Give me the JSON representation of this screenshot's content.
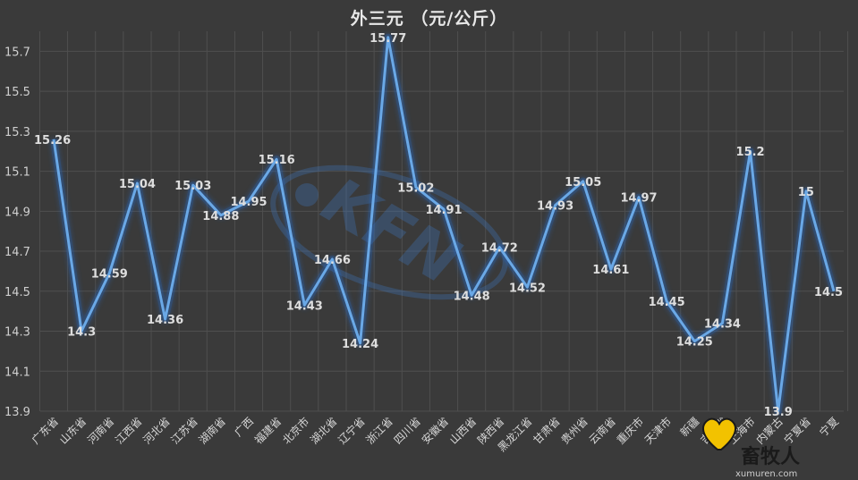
{
  "chart_data": {
    "type": "line",
    "title": "外三元 （元/公斤）",
    "xlabel": "",
    "ylabel": "",
    "ylim": [
      13.9,
      15.8
    ],
    "yticks": [
      13.9,
      14.1,
      14.3,
      14.5,
      14.7,
      14.9,
      15.1,
      15.3,
      15.5,
      15.7
    ],
    "grid": true,
    "legend": "none",
    "line_color": "#6aa8e6",
    "background_color": "#3a3a3a",
    "categories": [
      "广东省",
      "山东省",
      "河南省",
      "江西省",
      "河北省",
      "江苏省",
      "湖南省",
      "广西",
      "福建省",
      "北京市",
      "湖北省",
      "辽宁省",
      "浙江省",
      "四川省",
      "安徽省",
      "山西省",
      "陕西省",
      "黑龙江省",
      "甘肃省",
      "贵州省",
      "云南省",
      "重庆市",
      "天津市",
      "新疆",
      "吉林省",
      "上海市",
      "内蒙古",
      "宁夏省",
      "宁夏"
    ],
    "series": [
      {
        "values": [
          15.26,
          14.3,
          14.59,
          15.04,
          14.36,
          15.03,
          14.88,
          14.95,
          15.16,
          14.43,
          14.66,
          14.24,
          15.77,
          15.02,
          14.91,
          14.48,
          14.72,
          14.52,
          14.93,
          15.05,
          14.61,
          14.97,
          14.45,
          14.25,
          14.34,
          15.2,
          13.9,
          15,
          14.5
        ],
        "labels": [
          "15.26",
          "14.3",
          "14.59",
          "15.04",
          "14.36",
          "15.03",
          "14.88",
          "14.95",
          "15.16",
          "14.43",
          "14.66",
          "14.24",
          "15.77",
          "15.02",
          "14.91",
          "14.48",
          "14.72",
          "14.52",
          "14.93",
          "15.05",
          "14.61",
          "14.97",
          "14.45",
          "14.25",
          "14.34",
          "15.2",
          "13.9",
          "15",
          "14.5"
        ]
      }
    ]
  },
  "watermark": {
    "logo_text": "KFN",
    "brand": "畜牧人",
    "site": "xumuren.com"
  }
}
